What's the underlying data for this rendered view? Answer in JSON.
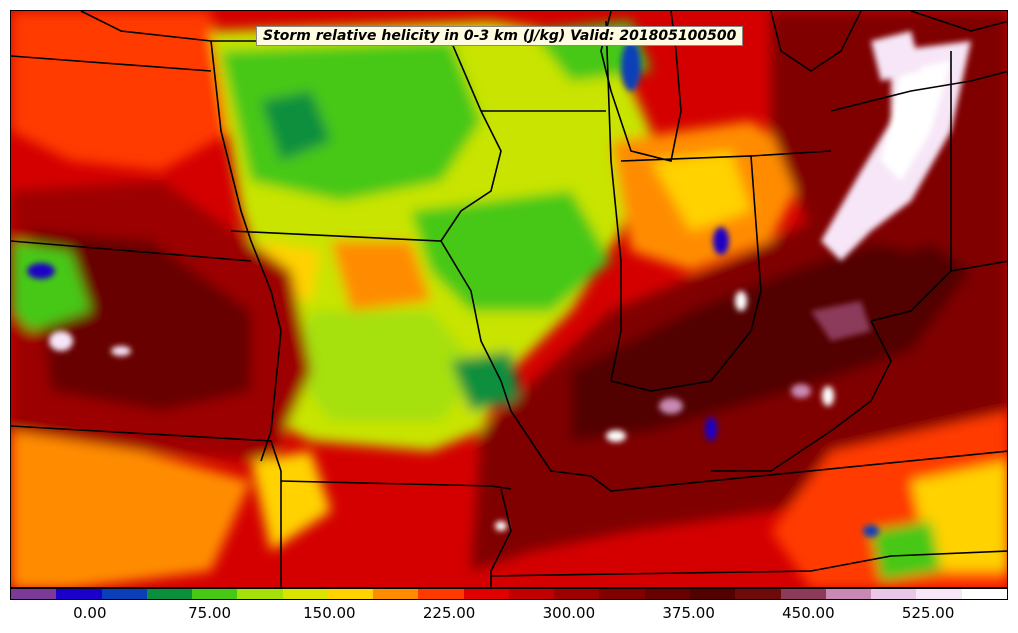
{
  "title": "Storm relative helicity in 0-3 km (J/kg) Valid: 201805100500",
  "colorbar": {
    "colors": [
      "#7b3a96",
      "#1a00c8",
      "#0a3fb8",
      "#0b8f3c",
      "#46c814",
      "#a6e00a",
      "#d9e500",
      "#ffd200",
      "#ff8c00",
      "#ff3a00",
      "#e00000",
      "#c00000",
      "#9c0000",
      "#800000",
      "#680000",
      "#520000",
      "#6e0a0a",
      "#8c3a5a",
      "#c88ab4",
      "#e8c8e6",
      "#f7e6f7",
      "#ffffff"
    ],
    "ticks": [
      "0.00",
      "75.00",
      "150.00",
      "225.00",
      "300.00",
      "375.00",
      "450.00",
      "525.00"
    ],
    "tick_values": [
      0,
      75,
      150,
      225,
      300,
      375,
      450,
      525
    ],
    "min": -50,
    "max": 575
  }
}
